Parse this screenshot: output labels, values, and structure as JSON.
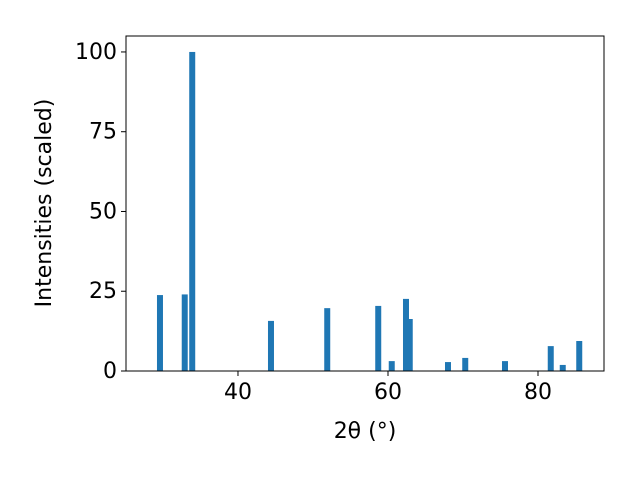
{
  "chart_data": {
    "type": "bar",
    "xlabel": "2θ (°)",
    "ylabel": "Intensities (scaled)",
    "x": [
      29.6,
      32.9,
      33.9,
      44.4,
      51.9,
      58.7,
      60.5,
      62.4,
      62.9,
      68.0,
      70.3,
      75.6,
      81.7,
      83.3,
      85.5
    ],
    "values": [
      23.8,
      24,
      100,
      15.7,
      19.7,
      20.4,
      3.1,
      22.6,
      16.3,
      2.8,
      4.1,
      3.1,
      7.8,
      1.9,
      9.4
    ],
    "bar_width": 0.8,
    "color": "#1f77b4",
    "xlim": [
      25.07,
      88.8
    ],
    "ylim": [
      0,
      105
    ],
    "xticks": [
      40,
      60,
      80
    ],
    "yticks": [
      0,
      25,
      50,
      75,
      100
    ]
  }
}
